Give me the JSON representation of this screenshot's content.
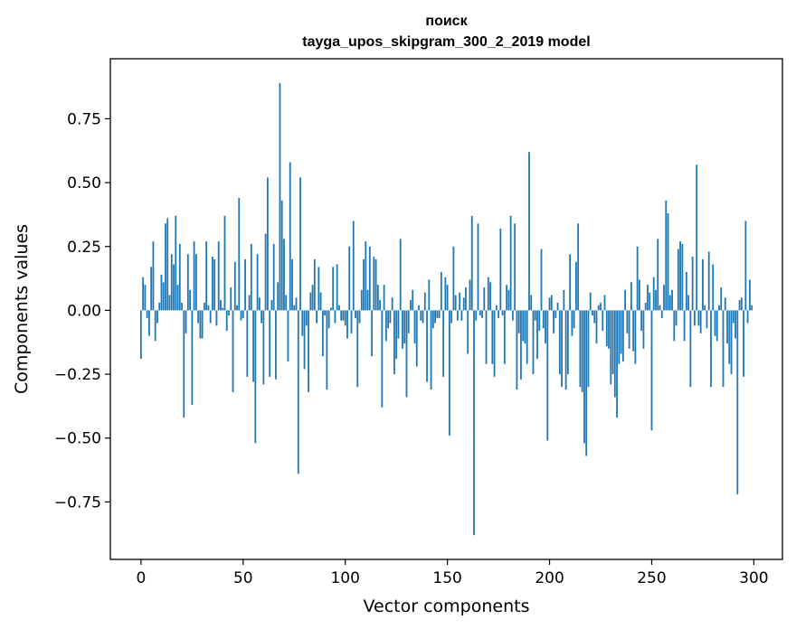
{
  "chart_data": {
    "type": "bar",
    "title_line1": "поиск",
    "title_line2": "tayga_upos_skipgram_300_2_2019 model",
    "xlabel": "Vector components",
    "ylabel": "Components values",
    "xlim": [
      -15,
      314
    ],
    "ylim": [
      -0.975,
      0.985
    ],
    "xticks": [
      0,
      50,
      100,
      150,
      200,
      250,
      300
    ],
    "xtick_labels": [
      "0",
      "50",
      "100",
      "150",
      "200",
      "250",
      "300"
    ],
    "yticks": [
      0.75,
      0.5,
      0.25,
      0.0,
      -0.25,
      -0.5,
      -0.75
    ],
    "ytick_labels": [
      "0.75",
      "0.50",
      "0.25",
      "0.00",
      "−0.25",
      "−0.50",
      "−0.75"
    ],
    "grid": false,
    "bar_color": "#1f77b4",
    "values": [
      -0.19,
      0.13,
      0.1,
      -0.03,
      -0.1,
      0.17,
      0.27,
      -0.12,
      -0.05,
      0.03,
      0.14,
      0.11,
      0.34,
      0.36,
      0.06,
      0.22,
      0.18,
      0.37,
      0.1,
      0.26,
      0.03,
      -0.42,
      -0.09,
      0.22,
      0.08,
      -0.37,
      0.27,
      0.22,
      -0.05,
      -0.11,
      -0.11,
      0.03,
      0.27,
      0.02,
      -0.05,
      0.21,
      0.2,
      -0.06,
      0.27,
      0.04,
      0.01,
      0.37,
      -0.08,
      -0.02,
      0.09,
      -0.32,
      0.19,
      0.02,
      0.44,
      -0.04,
      -0.03,
      0.2,
      -0.26,
      0.06,
      0.26,
      -0.28,
      -0.52,
      0.22,
      0.05,
      -0.05,
      -0.29,
      0.3,
      0.52,
      -0.26,
      0.04,
      0.26,
      -0.27,
      0.11,
      0.89,
      0.43,
      0.28,
      0.06,
      -0.2,
      0.58,
      0.2,
      0.02,
      0.05,
      -0.64,
      0.52,
      -0.1,
      -0.23,
      -0.06,
      -0.32,
      0.07,
      0.1,
      0.2,
      -0.05,
      0.17,
      0.07,
      -0.18,
      -0.02,
      -0.31,
      -0.07,
      0.01,
      0.17,
      -0.05,
      0.18,
      0.02,
      -0.04,
      -0.04,
      -0.06,
      -0.11,
      0.25,
      -0.09,
      0.35,
      -0.03,
      -0.3,
      -0.05,
      0.08,
      0.2,
      0.27,
      0.08,
      0.25,
      -0.18,
      0.21,
      0.2,
      0.1,
      0.04,
      -0.38,
      0.1,
      -0.12,
      -0.07,
      -0.05,
      0.05,
      -0.25,
      -0.19,
      -0.11,
      0.28,
      -0.15,
      -0.13,
      -0.34,
      -0.09,
      0.04,
      0.08,
      -0.13,
      -0.22,
      0.02,
      -0.04,
      -0.05,
      0.07,
      -0.28,
      0.12,
      -0.31,
      -0.07,
      -0.05,
      -0.03,
      -0.03,
      0.15,
      -0.26,
      0.13,
      0.1,
      -0.49,
      -0.05,
      0.25,
      0.06,
      -0.04,
      0.07,
      -0.04,
      0.05,
      0.09,
      -0.17,
      0.12,
      0.37,
      -0.88,
      -0.04,
      0.34,
      -0.02,
      -0.03,
      0.09,
      -0.21,
      0.13,
      0.11,
      -0.21,
      -0.26,
      0.02,
      -0.03,
      0.32,
      -0.02,
      -0.21,
      0.1,
      0.08,
      0.37,
      -0.04,
      0.34,
      -0.31,
      -0.09,
      -0.27,
      -0.12,
      -0.13,
      -0.21,
      0.62,
      0.06,
      -0.25,
      -0.04,
      -0.19,
      -0.08,
      0.24,
      -0.07,
      -0.13,
      -0.51,
      0.05,
      0.06,
      -0.09,
      -0.03,
      0.03,
      -0.25,
      -0.3,
      0.08,
      -0.31,
      -0.25,
      0.22,
      -0.1,
      -0.07,
      0.19,
      0.34,
      -0.3,
      -0.32,
      -0.52,
      -0.57,
      -0.3,
      0.07,
      -0.02,
      -0.05,
      -0.13,
      0.02,
      0.03,
      -0.08,
      0.06,
      -0.14,
      -0.15,
      -0.29,
      -0.25,
      -0.34,
      -0.42,
      -0.21,
      -0.17,
      -0.2,
      0.08,
      -0.09,
      -0.15,
      0.11,
      -0.16,
      -0.21,
      0.25,
      0.12,
      -0.08,
      -0.15,
      0.03,
      0.1,
      0.07,
      -0.47,
      0.13,
      0.08,
      0.28,
      0.02,
      -0.03,
      0.1,
      0.43,
      0.38,
      0.06,
      0.08,
      -0.12,
      -0.06,
      0.24,
      0.27,
      0.26,
      -0.12,
      0.15,
      0.06,
      -0.3,
      0.21,
      -0.06,
      0.57,
      -0.06,
      -0.09,
      0.2,
      0.02,
      -0.07,
      0.23,
      -0.3,
      0.18,
      -0.1,
      -0.12,
      0.02,
      0.09,
      -0.3,
      0.05,
      -0.13,
      -0.21,
      -0.25,
      -0.05,
      -0.11,
      -0.72,
      0.04,
      0.05,
      -0.26,
      0.35,
      -0.05,
      0.12,
      0.02
    ]
  }
}
